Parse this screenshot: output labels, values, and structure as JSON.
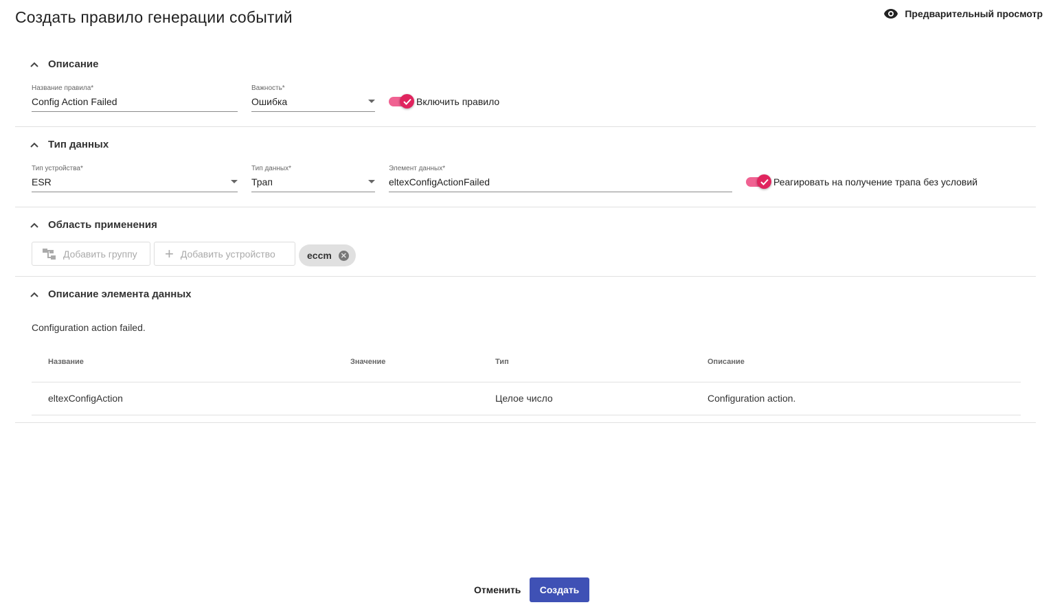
{
  "title": "Создать правило генерации событий",
  "preview_label": "Предварительный просмотр",
  "colors": {
    "accent": "#3f51b5",
    "toggle": "#e0245e"
  },
  "description": {
    "header": "Описание",
    "rule_name": {
      "label": "Название правила*",
      "value": "Config Action Failed"
    },
    "severity": {
      "label": "Важность*",
      "value": "Ошибка"
    },
    "enable_toggle": {
      "label": "Включить правило",
      "checked": true
    }
  },
  "data_type": {
    "header": "Тип данных",
    "device_type": {
      "label": "Тип устройства*",
      "value": "ESR"
    },
    "data_kind": {
      "label": "Тип данных*",
      "value": "Трап"
    },
    "data_element": {
      "label": "Элемент данных*",
      "value": "eltexConfigActionFailed"
    },
    "unconditional_toggle": {
      "label": "Реагировать на получение трапа без условий",
      "checked": true
    }
  },
  "scope": {
    "header": "Область применения",
    "add_group": "Добавить группу",
    "add_device": "Добавить устройство",
    "chips": [
      "eccm"
    ]
  },
  "element_desc": {
    "header": "Описание элемента данных",
    "text": "Configuration action failed.",
    "columns": [
      "Название",
      "Значение",
      "Тип",
      "Описание"
    ],
    "rows": [
      [
        "eltexConfigAction",
        "",
        "Целое число",
        "Configuration action."
      ]
    ]
  },
  "footer": {
    "cancel": "Отменить",
    "create": "Создать"
  }
}
